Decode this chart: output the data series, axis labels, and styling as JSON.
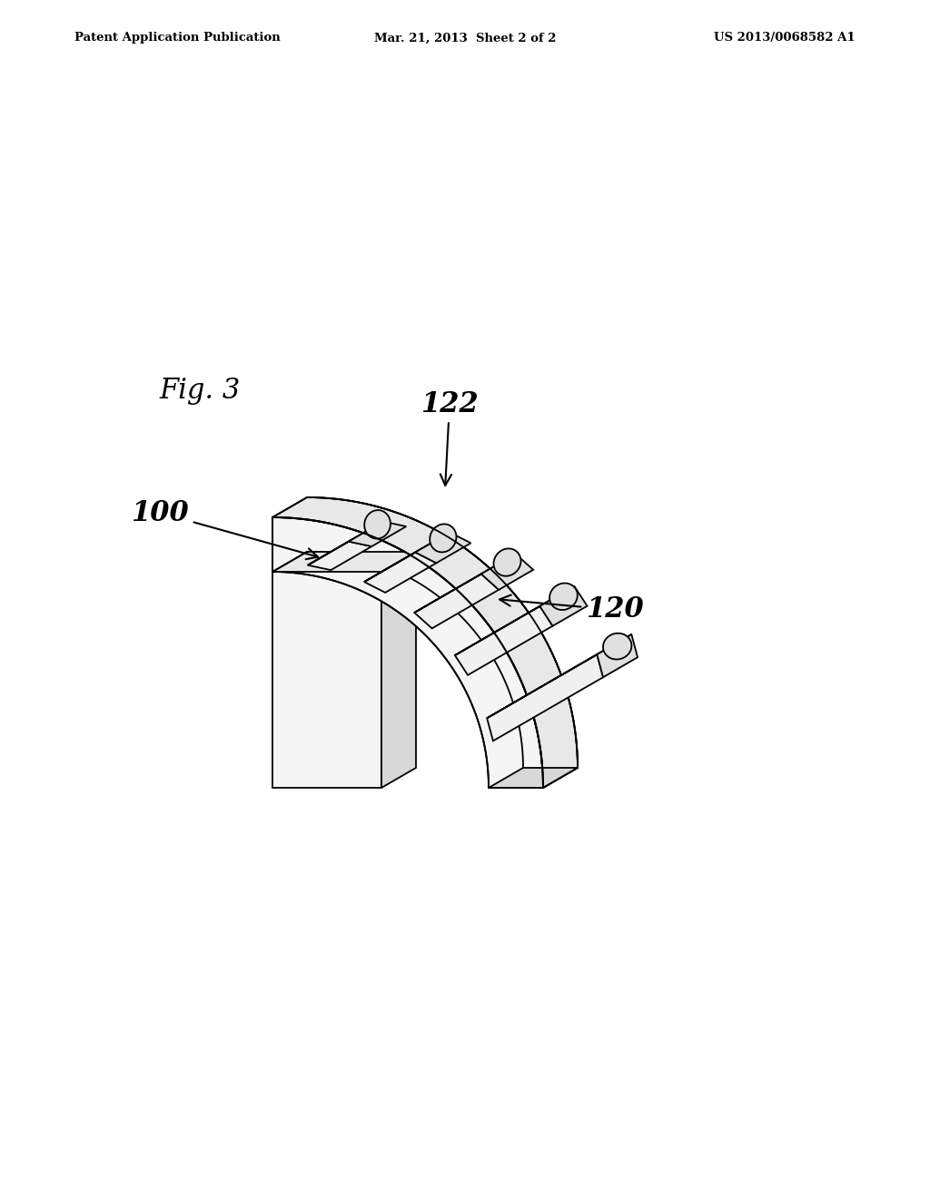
{
  "background_color": "#ffffff",
  "fig_label": "Fig. 3",
  "header_left": "Patent Application Publication",
  "header_center": "Mar. 21, 2013  Sheet 2 of 2",
  "header_right": "US 2013/0068582 A1",
  "label_100": "100",
  "label_120": "120",
  "label_122": "122",
  "line_color": "#000000",
  "lw": 1.3,
  "fill_front": "#f5f5f5",
  "fill_side": "#d8d8d8",
  "fill_top": "#e8e8e8",
  "fill_tooth_front": "#f0f0f0",
  "fill_tooth_side": "#d0d0d0",
  "fill_tooth_top": "#e0e0e0"
}
